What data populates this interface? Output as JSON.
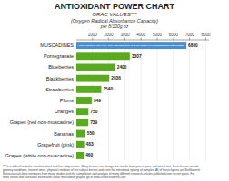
{
  "chart_data": {
    "type": "bar",
    "orientation": "horizontal",
    "title": "ANTIOXIDANT POWER CHART",
    "subtitle": [
      "ORAC VALUES***",
      "(Oxygen Radical Absorbance Capacity)",
      "per 8/100g.oz"
    ],
    "categories": [
      "MUSCADINES",
      "Pomegranate",
      "Blueberries",
      "Blackberries",
      "Strawberries",
      "Plums",
      "Oranges",
      "Grapes (red non-muscadine)",
      "Bananas",
      "Grapefruit (pink)",
      "Grapes (white non-muscadine)"
    ],
    "values": [
      6800,
      3307,
      2400,
      2036,
      1540,
      949,
      750,
      739,
      550,
      483,
      460
    ],
    "colors": [
      "#4a8ecf",
      "#5aaa20",
      "#5aaa20",
      "#5aaa20",
      "#5aaa20",
      "#5aaa20",
      "#5aaa20",
      "#5aaa20",
      "#5aaa20",
      "#5aaa20",
      "#5aaa20"
    ],
    "xlim": [
      0,
      8200
    ],
    "xticks": [
      1000,
      2000,
      3000,
      4000,
      5000,
      6000,
      7000,
      8000
    ],
    "grid": true,
    "data_labels": true,
    "annotations": [
      "POLYPHENOLS, ELLAGIC ACID, RESVERATROL & MANY MORE PHYTONUTRIENTS COMPOUNDS"
    ],
    "footnote": [
      "*** It is difficult to make absolute direct and fair comparisons. Many factors can change test results from year to year and test to test. Such factors include",
      "growing conditions, harvest times, physical condition of the subject berries and even the intentional spiking of samples.    All of these figures are BioNumerik",
      "NutraceuticaIs best estimates from many studies and the compilation and analysis of many different research articles published over recent years.  For",
      "more health and nutritional information about muscadine grapes, go to www.DivineVitamins.com"
    ]
  }
}
